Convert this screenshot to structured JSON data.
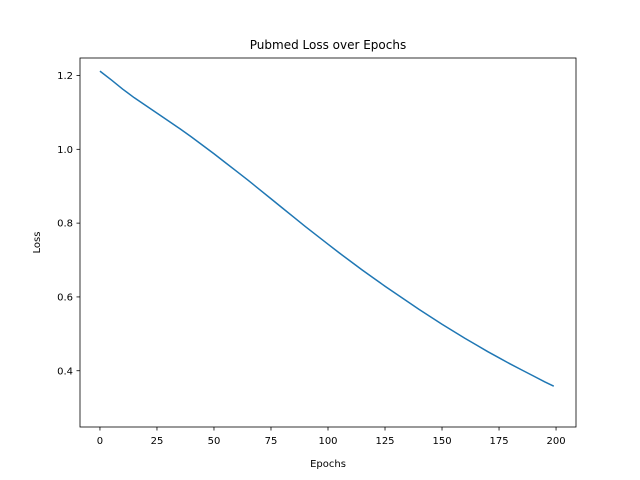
{
  "chart_data": {
    "type": "line",
    "title": "Pubmed Loss over Epochs",
    "xlabel": "Epochs",
    "ylabel": "Loss",
    "xlim": [
      -8.75,
      208.75
    ],
    "ylim": [
      0.2475,
      1.2475
    ],
    "xticks": [
      0,
      25,
      50,
      75,
      100,
      125,
      150,
      175,
      200
    ],
    "yticks": [
      0.4,
      0.6,
      0.8,
      1.0,
      1.2
    ],
    "ytick_labels": [
      "0.4",
      "0.6",
      "0.8",
      "1.0",
      "1.2"
    ],
    "grid": false,
    "color": "#1f77b4",
    "series": [
      {
        "x": [
          0,
          5,
          10,
          15,
          20,
          25,
          30,
          35,
          40,
          45,
          50,
          55,
          60,
          65,
          70,
          75,
          80,
          85,
          90,
          95,
          100,
          105,
          110,
          115,
          120,
          125,
          130,
          135,
          140,
          145,
          150,
          155,
          160,
          165,
          170,
          175,
          180,
          185,
          190,
          195,
          199
        ],
        "values": [
          1.212,
          1.188,
          1.163,
          1.14,
          1.119,
          1.098,
          1.077,
          1.056,
          1.034,
          1.011,
          0.988,
          0.964,
          0.94,
          0.916,
          0.891,
          0.866,
          0.841,
          0.816,
          0.791,
          0.767,
          0.743,
          0.719,
          0.696,
          0.673,
          0.651,
          0.629,
          0.608,
          0.587,
          0.566,
          0.546,
          0.526,
          0.507,
          0.488,
          0.47,
          0.452,
          0.435,
          0.418,
          0.402,
          0.386,
          0.37,
          0.358
        ]
      }
    ]
  }
}
